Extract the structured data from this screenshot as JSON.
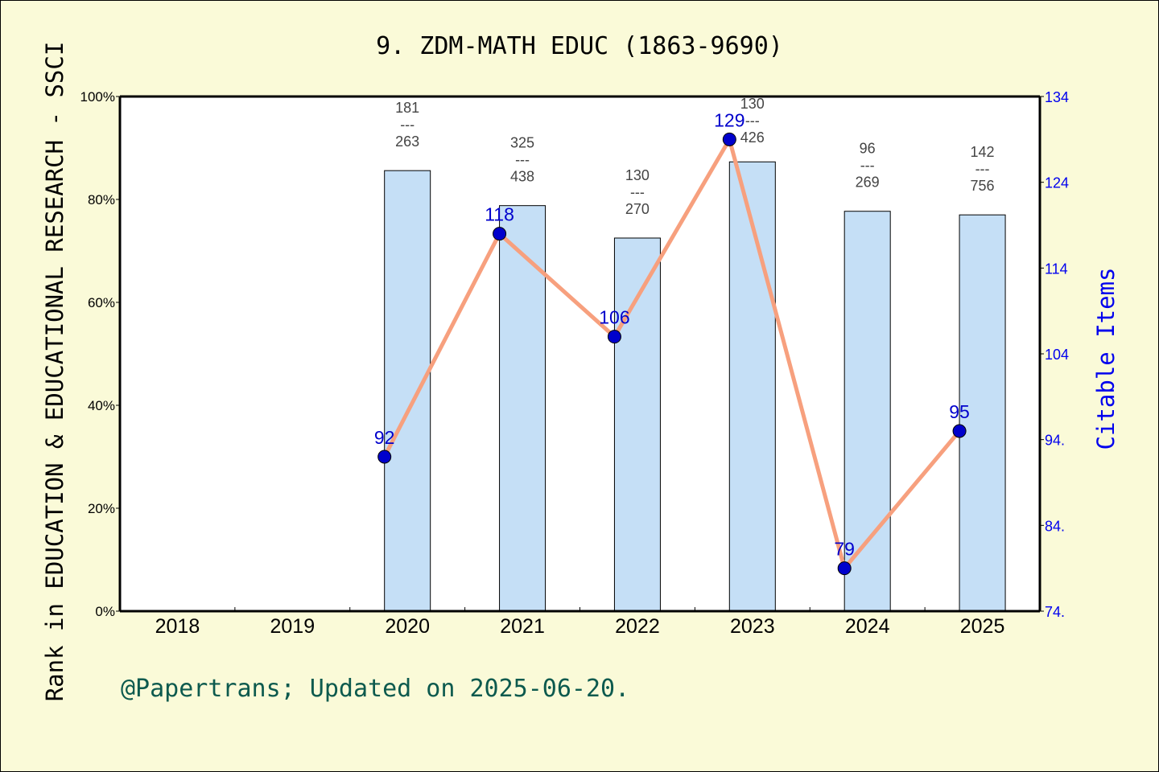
{
  "chart_data": {
    "type": "bar+line",
    "title": "9. ZDM-MATH EDUC (1863-9690)",
    "xlabel": "",
    "ylabel": "Rank in EDUCATION & EDUCATIONAL RESEARCH - SSCI",
    "y2label": "Citable Items",
    "categories": [
      "2018",
      "2019",
      "2020",
      "2021",
      "2022",
      "2023",
      "2024",
      "2025"
    ],
    "ylim": [
      0,
      100
    ],
    "y_ticks": [
      "0%",
      "20%",
      "40%",
      "60%",
      "80%",
      "100%"
    ],
    "y2lim": [
      74,
      134
    ],
    "y2_ticks": [
      "74.",
      "84.",
      "94.",
      "104",
      "114",
      "124",
      "134"
    ],
    "grid": false,
    "series": [
      {
        "name": "Rank percentile",
        "type": "bar",
        "color": "#c5dff6",
        "values": [
          null,
          null,
          85.6,
          78.8,
          72.5,
          87.3,
          77.7,
          77.0
        ],
        "annotations": [
          null,
          null,
          {
            "rank": "181",
            "total": "263"
          },
          {
            "rank": "325",
            "total": "438"
          },
          {
            "rank": "130",
            "total": "270"
          },
          {
            "rank": "130",
            "total": "426"
          },
          {
            "rank": "96",
            "total": "269"
          },
          {
            "rank": "142",
            "total": "756"
          }
        ]
      },
      {
        "name": "Citable Items",
        "type": "line",
        "axis": "right",
        "color": "#f7a07e",
        "marker_color": "#0000cc",
        "values": [
          null,
          null,
          92,
          118,
          106,
          129,
          79,
          95
        ]
      }
    ]
  },
  "footer": "@Papertrans; Updated on 2025-06-20."
}
